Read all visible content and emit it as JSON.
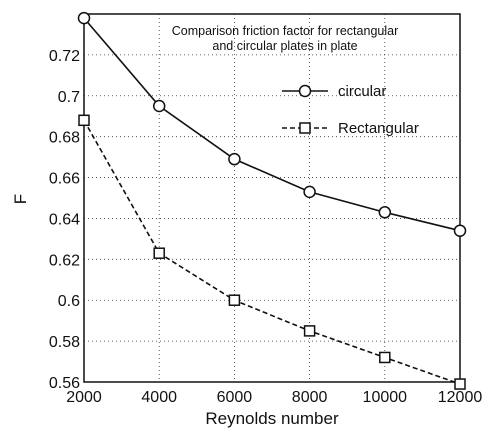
{
  "chart_data": {
    "type": "line",
    "title_lines": [
      "Comparison friction factor for rectangular",
      "and circular plates in plate"
    ],
    "xlabel": "Reynolds number",
    "ylabel": "F",
    "x": [
      2000,
      4000,
      6000,
      8000,
      10000,
      12000
    ],
    "xlim": [
      2000,
      12000
    ],
    "ylim": [
      0.56,
      0.74
    ],
    "x_ticks": [
      2000,
      4000,
      6000,
      8000,
      10000,
      12000
    ],
    "y_ticks": [
      0.56,
      0.58,
      0.6,
      0.62,
      0.64,
      0.66,
      0.68,
      0.7,
      0.72
    ],
    "grid": true,
    "legend_position": "top-right",
    "series": [
      {
        "name": "circular",
        "marker": "circle",
        "linestyle": "solid",
        "color": "#111111",
        "values": [
          0.738,
          0.695,
          0.669,
          0.653,
          0.643,
          0.634
        ]
      },
      {
        "name": "Rectangular",
        "marker": "square",
        "linestyle": "dashed",
        "color": "#111111",
        "values": [
          0.688,
          0.623,
          0.6,
          0.585,
          0.572,
          0.559
        ]
      }
    ]
  }
}
